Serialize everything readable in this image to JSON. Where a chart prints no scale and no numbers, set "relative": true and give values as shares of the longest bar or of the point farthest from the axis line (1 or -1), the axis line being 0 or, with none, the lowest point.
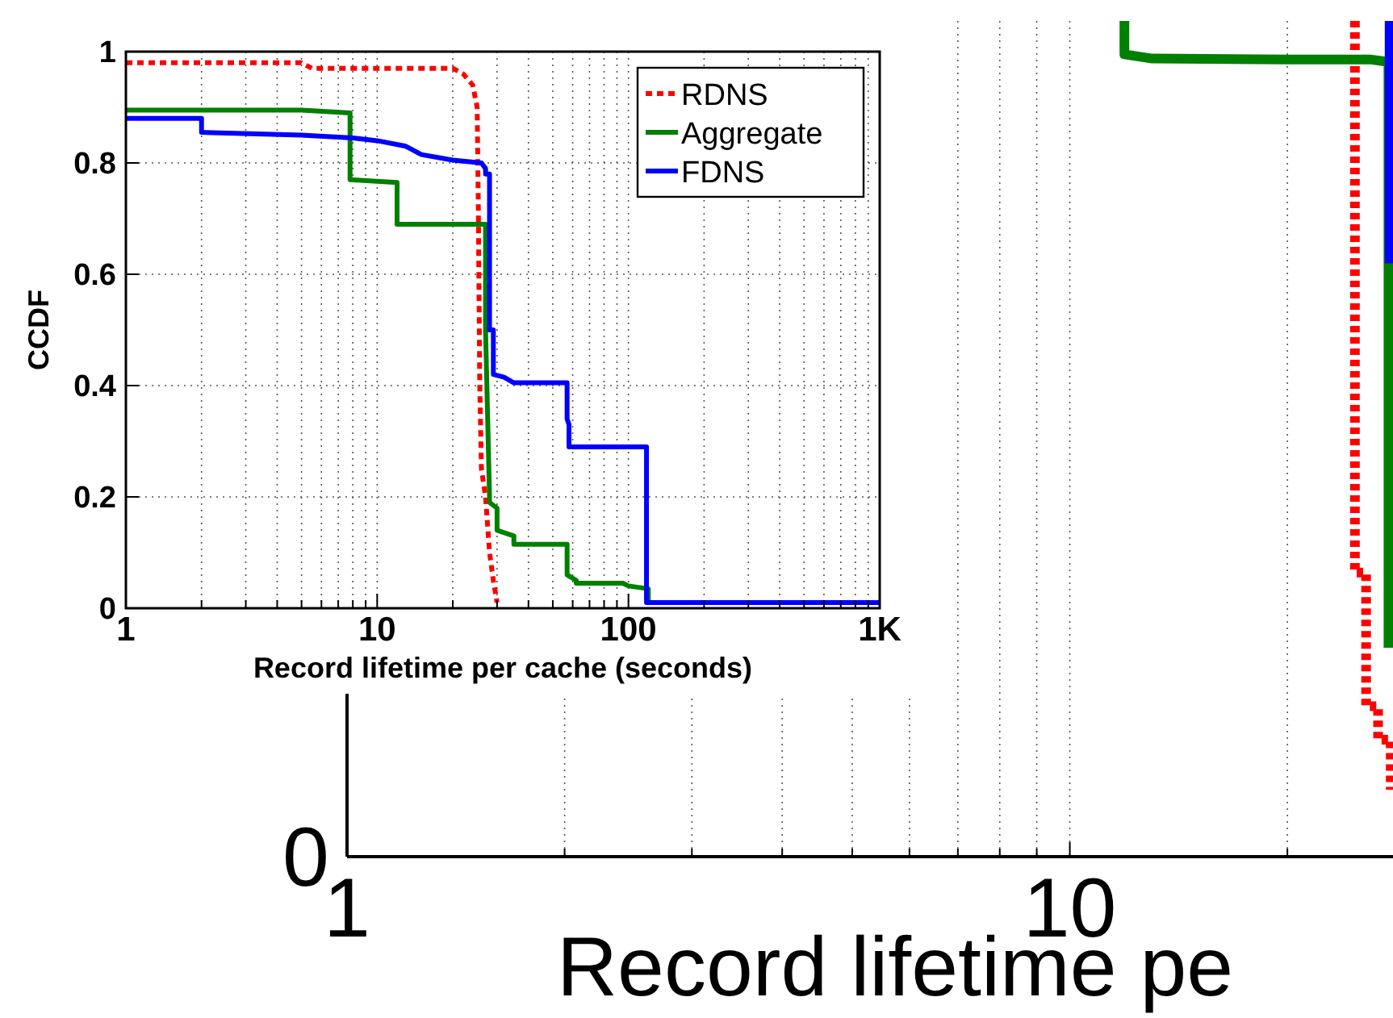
{
  "chart_data": [
    {
      "type": "line",
      "xlabel": "Record lifetime pe",
      "log": "x",
      "xlim": [
        1,
        28
      ],
      "relative": true,
      "annotations": [
        "0"
      ],
      "xticks": [
        1,
        {
          "value": 2,
          "label": null
        },
        {
          "value": 3,
          "label": null
        },
        {
          "value": 4,
          "label": null
        },
        {
          "value": 5,
          "label": null
        },
        {
          "value": 6,
          "label": null
        },
        {
          "value": 7,
          "label": null
        },
        {
          "value": 8,
          "label": null
        },
        {
          "value": 9,
          "label": null
        },
        10,
        {
          "value": 20,
          "label": null
        }
      ],
      "grid": "x",
      "legend": false,
      "series": [
        {
          "color": "#ff0000",
          "line_style": "dotted",
          "x": [
            24.8,
            24.8,
            25.7,
            25.7,
            26.7,
            26.7,
            27.8,
            27.8
          ],
          "values": [
            1,
            0.34,
            0.34,
            0.18,
            0.18,
            0.14,
            0.14,
            0.08
          ]
        },
        {
          "color": "#008000",
          "line_style": "solid",
          "x": [
            11.9,
            11.9,
            13,
            20,
            26,
            27.6,
            27.6,
            27.6
          ],
          "values": [
            1,
            0.96,
            0.955,
            0.954,
            0.954,
            0.951,
            0.71,
            0.25
          ]
        },
        {
          "color": "#0000ff",
          "line_style": "solid",
          "x": [
            27.7,
            27.7
          ],
          "values": [
            1,
            0.71
          ]
        }
      ]
    },
    {
      "type": "line",
      "xlabel": "Record lifetime per cache (seconds)",
      "ylabel": "CCDF",
      "log": "x",
      "xlim": [
        1,
        1000
      ],
      "ylim": [
        0,
        1
      ],
      "xticks": [
        1,
        {
          "value": 2,
          "label": null
        },
        {
          "value": 3,
          "label": null
        },
        {
          "value": 4,
          "label": null
        },
        {
          "value": 5,
          "label": null
        },
        {
          "value": 6,
          "label": null
        },
        {
          "value": 7,
          "label": null
        },
        {
          "value": 8,
          "label": null
        },
        {
          "value": 9,
          "label": null
        },
        10,
        {
          "value": 20,
          "label": null
        },
        {
          "value": 30,
          "label": null
        },
        {
          "value": 40,
          "label": null
        },
        {
          "value": 50,
          "label": null
        },
        {
          "value": 60,
          "label": null
        },
        {
          "value": 70,
          "label": null
        },
        {
          "value": 80,
          "label": null
        },
        {
          "value": 90,
          "label": null
        },
        100,
        {
          "value": 200,
          "label": null
        },
        {
          "value": 300,
          "label": null
        },
        {
          "value": 400,
          "label": null
        },
        {
          "value": 500,
          "label": null
        },
        {
          "value": 600,
          "label": null
        },
        {
          "value": 700,
          "label": null
        },
        {
          "value": 800,
          "label": null
        },
        {
          "value": 900,
          "label": null
        },
        {
          "value": 1000,
          "label": "1K"
        }
      ],
      "yticks": [
        0,
        0.2,
        0.4,
        0.6,
        0.8,
        1
      ],
      "grid": true,
      "legend": "top right",
      "series": [
        {
          "name": "RDNS",
          "color": "#ff0000",
          "line_style": "dotted",
          "x": [
            1,
            5,
            5.5,
            20,
            22,
            24,
            25,
            25.3,
            25.6,
            26,
            27,
            28,
            29,
            30
          ],
          "values": [
            0.98,
            0.98,
            0.97,
            0.97,
            0.96,
            0.94,
            0.9,
            0.7,
            0.4,
            0.25,
            0.2,
            0.1,
            0.05,
            0.01
          ]
        },
        {
          "name": "Aggregate",
          "color": "#008000",
          "line_style": "solid",
          "x": [
            1,
            5,
            7.8,
            7.8,
            12,
            12,
            27,
            27,
            28,
            28,
            30,
            30,
            35,
            35,
            57,
            57,
            62,
            62,
            95,
            100,
            120,
            120,
            1000
          ],
          "values": [
            0.895,
            0.895,
            0.89,
            0.77,
            0.765,
            0.69,
            0.69,
            0.5,
            0.2,
            0.19,
            0.18,
            0.14,
            0.13,
            0.115,
            0.115,
            0.06,
            0.05,
            0.045,
            0.045,
            0.04,
            0.035,
            0.01,
            0.01
          ]
        },
        {
          "name": "FDNS",
          "color": "#0000ff",
          "line_style": "solid",
          "x": [
            1,
            2,
            2,
            5,
            8,
            10,
            13,
            15,
            20,
            26,
            27,
            27,
            28,
            28,
            29,
            29,
            32,
            35,
            57,
            57,
            58,
            58,
            118,
            118,
            125,
            1000
          ],
          "values": [
            0.88,
            0.88,
            0.855,
            0.85,
            0.845,
            0.84,
            0.83,
            0.815,
            0.805,
            0.8,
            0.79,
            0.78,
            0.78,
            0.5,
            0.5,
            0.42,
            0.415,
            0.405,
            0.405,
            0.34,
            0.33,
            0.29,
            0.29,
            0.01,
            0.01,
            0.01
          ]
        }
      ]
    }
  ]
}
